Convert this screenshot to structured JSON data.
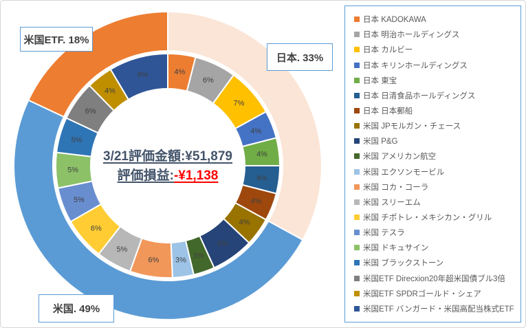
{
  "chart_data": {
    "type": "doughnut",
    "legend_position": "right",
    "center": {
      "line1": "3/21評価金額:¥51,879",
      "line2_label": "評価損益:",
      "line2_value": "-¥1,138"
    },
    "outer_groups": [
      {
        "name": "日本",
        "pct": 33,
        "color": "#FBE5D6",
        "callout": "日本. 33%"
      },
      {
        "name": "米国",
        "pct": 49,
        "color": "#5B9BD5",
        "callout": "米国. 49%"
      },
      {
        "name": "米国ETF",
        "pct": 18,
        "color": "#ED7D31",
        "callout": "米国ETF. 18%"
      }
    ],
    "items": [
      {
        "label": "日本 KADOKAWA",
        "group": "日本",
        "pct": 4,
        "color": "#ED7D31"
      },
      {
        "label": "日本 明治ホールディングス",
        "group": "日本",
        "pct": 6,
        "color": "#A5A5A5"
      },
      {
        "label": "日本 カルビー",
        "group": "日本",
        "pct": 7,
        "color": "#FFC000"
      },
      {
        "label": "日本 キリンホールディングス",
        "group": "日本",
        "pct": 4,
        "color": "#4472C4"
      },
      {
        "label": "日本 東宝",
        "group": "日本",
        "pct": 4,
        "color": "#70AD47"
      },
      {
        "label": "日本 日清食品ホールディングス",
        "group": "日本",
        "pct": 4,
        "color": "#255E91"
      },
      {
        "label": "日本 日本郵船",
        "group": "日本",
        "pct": 4,
        "color": "#9E480E"
      },
      {
        "label": "米国 JPモルガン・チェース",
        "group": "米国",
        "pct": 4,
        "color": "#997300"
      },
      {
        "label": "米国 P&G",
        "group": "米国",
        "pct": 6,
        "color": "#264478"
      },
      {
        "label": "米国 アメリカン航空",
        "group": "米国",
        "pct": 3,
        "color": "#43682B"
      },
      {
        "label": "米国 エクソンモービル",
        "group": "米国",
        "pct": 3,
        "color": "#9DC3E6"
      },
      {
        "label": "米国 コカ・コーラ",
        "group": "米国",
        "pct": 6,
        "color": "#F1975A"
      },
      {
        "label": "米国 スリーエム",
        "group": "米国",
        "pct": 5,
        "color": "#B7B7B7"
      },
      {
        "label": "米国 チポトレ・メキシカン・グリル",
        "group": "米国",
        "pct": 6,
        "color": "#FFCD33"
      },
      {
        "label": "米国 テスラ",
        "group": "米国",
        "pct": 5,
        "color": "#698ED0"
      },
      {
        "label": "米国 ドキュサイン",
        "group": "米国",
        "pct": 5,
        "color": "#8CC168"
      },
      {
        "label": "米国 ブラックストーン",
        "group": "米国",
        "pct": 5,
        "color": "#2E75B6"
      },
      {
        "label": "米国ETF Direcxion20年超米国債ブル3倍",
        "group": "米国ETF",
        "pct": 6,
        "color": "#7F7F7F"
      },
      {
        "label": "米国ETF SPDRゴールド・シェア",
        "group": "米国ETF",
        "pct": 4,
        "color": "#BF8F00"
      },
      {
        "label": "米国ETF バンガード・米国高配当株式ETF",
        "group": "米国ETF",
        "pct": 9,
        "color": "#2F5597"
      }
    ],
    "label_suffix": "%",
    "colors": {
      "segment_label_text": "#404040",
      "center_text": "#44546A",
      "loss_red": "#FF0000",
      "callout_border": "#5B9BD5",
      "legend_border": "#5B9BD5"
    }
  }
}
